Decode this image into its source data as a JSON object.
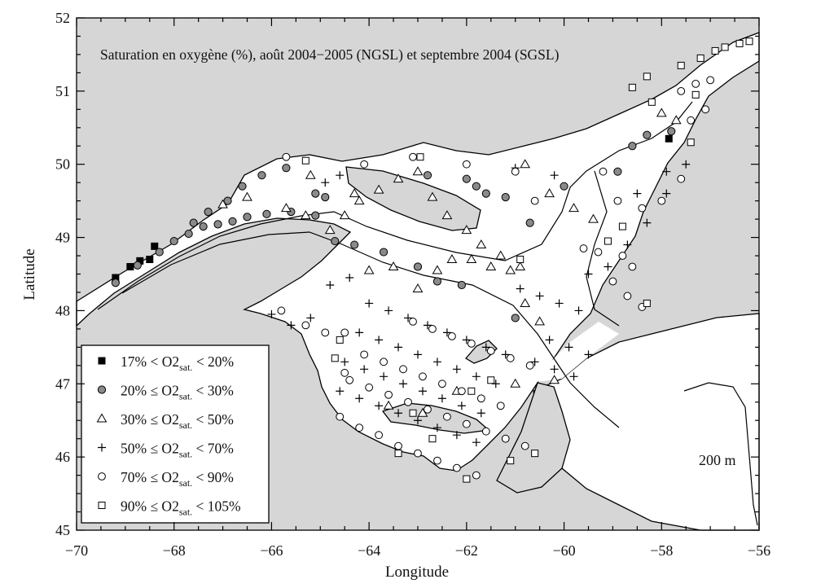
{
  "title": "Saturation en oxygène (%), août 2004−2005 (NGSL) et septembre 2004 (SGSL)",
  "axes": {
    "xlabel": "Longitude",
    "ylabel": "Latitude",
    "xlim": [
      -70,
      -56
    ],
    "ylim": [
      45,
      52
    ],
    "xticks": [
      "−70",
      "−68",
      "−66",
      "−64",
      "−62",
      "−60",
      "−58",
      "−56"
    ],
    "yticks": [
      "45",
      "46",
      "47",
      "48",
      "49",
      "50",
      "51",
      "52"
    ]
  },
  "depth_label": "200 m",
  "colors": {
    "land": "#d6d6d6",
    "water": "#ffffff",
    "gray_marker": "#8a8a8a",
    "ink": "#000000"
  },
  "legend": [
    {
      "marker": "filled-square",
      "pre": "17% < O2",
      "sub": "sat.",
      "post": " < 20%"
    },
    {
      "marker": "gray-circle",
      "pre": "20% ≤ O2",
      "sub": "sat.",
      "post": " < 30%"
    },
    {
      "marker": "triangle",
      "pre": "30% ≤ O2",
      "sub": "sat.",
      "post": " < 50%"
    },
    {
      "marker": "plus",
      "pre": "50% ≤ O2",
      "sub": "sat.",
      "post": " < 70%"
    },
    {
      "marker": "circle",
      "pre": "70% ≤ O2",
      "sub": "sat.",
      "post": " < 90%"
    },
    {
      "marker": "square",
      "pre": "90% ≤ O2",
      "sub": "sat.",
      "post": " < 105%"
    }
  ],
  "stations": {
    "filled-square": [
      [
        -69.2,
        48.45
      ],
      [
        -68.9,
        48.6
      ],
      [
        -68.7,
        48.68
      ],
      [
        -68.5,
        48.7
      ],
      [
        -68.4,
        48.88
      ],
      [
        -57.85,
        50.35
      ]
    ],
    "gray-circle": [
      [
        -69.2,
        48.38
      ],
      [
        -68.75,
        48.62
      ],
      [
        -68.3,
        48.8
      ],
      [
        -68.0,
        48.95
      ],
      [
        -67.7,
        49.05
      ],
      [
        -67.4,
        49.15
      ],
      [
        -67.1,
        49.18
      ],
      [
        -66.8,
        49.22
      ],
      [
        -66.5,
        49.28
      ],
      [
        -66.1,
        49.32
      ],
      [
        -65.6,
        49.35
      ],
      [
        -65.1,
        49.3
      ],
      [
        -67.6,
        49.2
      ],
      [
        -67.3,
        49.35
      ],
      [
        -66.9,
        49.5
      ],
      [
        -66.6,
        49.7
      ],
      [
        -66.2,
        49.85
      ],
      [
        -65.7,
        49.95
      ],
      [
        -65.1,
        49.6
      ],
      [
        -64.9,
        49.55
      ],
      [
        -64.7,
        48.95
      ],
      [
        -64.3,
        48.9
      ],
      [
        -63.7,
        48.8
      ],
      [
        -63.0,
        48.6
      ],
      [
        -62.6,
        48.4
      ],
      [
        -62.1,
        48.35
      ],
      [
        -61.8,
        49.7
      ],
      [
        -61.6,
        49.6
      ],
      [
        -61.2,
        49.55
      ],
      [
        -60.7,
        49.2
      ],
      [
        -62.8,
        49.85
      ],
      [
        -62.0,
        49.8
      ],
      [
        -58.6,
        50.25
      ],
      [
        -58.3,
        50.4
      ],
      [
        -57.8,
        50.45
      ],
      [
        -58.9,
        49.9
      ],
      [
        -60.0,
        49.7
      ],
      [
        -61.0,
        47.9
      ]
    ],
    "triangle": [
      [
        -67.0,
        49.45
      ],
      [
        -66.5,
        49.55
      ],
      [
        -65.7,
        49.4
      ],
      [
        -65.3,
        49.3
      ],
      [
        -64.8,
        49.1
      ],
      [
        -64.5,
        49.3
      ],
      [
        -64.2,
        49.5
      ],
      [
        -63.8,
        49.65
      ],
      [
        -63.4,
        49.8
      ],
      [
        -63.0,
        49.9
      ],
      [
        -62.7,
        49.55
      ],
      [
        -62.4,
        49.3
      ],
      [
        -62.0,
        49.1
      ],
      [
        -61.7,
        48.9
      ],
      [
        -61.3,
        48.75
      ],
      [
        -60.9,
        48.6
      ],
      [
        -64.0,
        48.55
      ],
      [
        -63.5,
        48.6
      ],
      [
        -63.0,
        48.3
      ],
      [
        -62.6,
        48.55
      ],
      [
        -62.3,
        48.7
      ],
      [
        -61.9,
        48.7
      ],
      [
        -61.5,
        48.6
      ],
      [
        -61.1,
        48.55
      ],
      [
        -60.8,
        48.1
      ],
      [
        -60.5,
        47.85
      ],
      [
        -65.2,
        49.85
      ],
      [
        -64.3,
        49.6
      ],
      [
        -60.8,
        50.0
      ],
      [
        -60.3,
        49.6
      ],
      [
        -59.8,
        49.4
      ],
      [
        -59.4,
        49.25
      ],
      [
        -58.0,
        50.7
      ],
      [
        -57.7,
        50.6
      ],
      [
        -62.9,
        46.6
      ],
      [
        -63.6,
        46.7
      ],
      [
        -62.2,
        46.9
      ],
      [
        -61.0,
        47.0
      ],
      [
        -60.2,
        47.05
      ]
    ],
    "plus": [
      [
        -64.0,
        48.1
      ],
      [
        -63.6,
        48.0
      ],
      [
        -63.2,
        47.9
      ],
      [
        -62.8,
        47.8
      ],
      [
        -62.4,
        47.7
      ],
      [
        -62.0,
        47.6
      ],
      [
        -61.6,
        47.5
      ],
      [
        -61.2,
        47.4
      ],
      [
        -64.2,
        47.7
      ],
      [
        -63.8,
        47.6
      ],
      [
        -63.4,
        47.5
      ],
      [
        -63.0,
        47.4
      ],
      [
        -62.6,
        47.3
      ],
      [
        -62.2,
        47.2
      ],
      [
        -61.8,
        47.1
      ],
      [
        -61.4,
        47.0
      ],
      [
        -64.5,
        47.3
      ],
      [
        -64.1,
        47.2
      ],
      [
        -63.7,
        47.1
      ],
      [
        -63.3,
        47.0
      ],
      [
        -62.9,
        46.9
      ],
      [
        -62.5,
        46.8
      ],
      [
        -62.1,
        46.7
      ],
      [
        -61.7,
        46.6
      ],
      [
        -64.6,
        46.9
      ],
      [
        -64.2,
        46.8
      ],
      [
        -63.8,
        46.7
      ],
      [
        -63.4,
        46.6
      ],
      [
        -63.0,
        46.5
      ],
      [
        -62.6,
        46.4
      ],
      [
        -62.2,
        46.3
      ],
      [
        -61.8,
        46.2
      ],
      [
        -60.9,
        48.3
      ],
      [
        -60.5,
        48.2
      ],
      [
        -60.1,
        48.1
      ],
      [
        -59.7,
        48.0
      ],
      [
        -60.3,
        47.6
      ],
      [
        -59.9,
        47.5
      ],
      [
        -59.5,
        47.4
      ],
      [
        -60.6,
        47.3
      ],
      [
        -60.2,
        47.2
      ],
      [
        -59.8,
        47.1
      ],
      [
        -59.5,
        48.5
      ],
      [
        -59.1,
        48.6
      ],
      [
        -58.7,
        48.9
      ],
      [
        -58.3,
        49.2
      ],
      [
        -57.9,
        49.6
      ],
      [
        -57.5,
        50.0
      ],
      [
        -65.2,
        47.9
      ],
      [
        -65.6,
        47.8
      ],
      [
        -66.0,
        47.95
      ],
      [
        -64.8,
        48.35
      ],
      [
        -64.4,
        48.45
      ],
      [
        -61.0,
        49.95
      ],
      [
        -60.2,
        49.85
      ],
      [
        -64.6,
        49.85
      ],
      [
        -64.9,
        49.75
      ],
      [
        -58.5,
        49.6
      ],
      [
        -57.9,
        49.9
      ]
    ],
    "circle": [
      [
        -65.8,
        48.0
      ],
      [
        -65.3,
        47.8
      ],
      [
        -64.9,
        47.7
      ],
      [
        -64.5,
        47.7
      ],
      [
        -64.1,
        47.4
      ],
      [
        -63.7,
        47.3
      ],
      [
        -63.3,
        47.2
      ],
      [
        -62.9,
        47.1
      ],
      [
        -62.5,
        47.0
      ],
      [
        -62.1,
        46.9
      ],
      [
        -61.7,
        46.8
      ],
      [
        -61.3,
        46.7
      ],
      [
        -64.4,
        47.05
      ],
      [
        -64.0,
        46.95
      ],
      [
        -63.6,
        46.85
      ],
      [
        -63.2,
        46.75
      ],
      [
        -62.8,
        46.65
      ],
      [
        -62.4,
        46.55
      ],
      [
        -62.0,
        46.45
      ],
      [
        -61.6,
        46.35
      ],
      [
        -61.2,
        46.25
      ],
      [
        -60.8,
        46.15
      ],
      [
        -64.6,
        46.55
      ],
      [
        -64.2,
        46.4
      ],
      [
        -63.8,
        46.3
      ],
      [
        -63.4,
        46.15
      ],
      [
        -63.0,
        46.05
      ],
      [
        -62.6,
        45.95
      ],
      [
        -62.2,
        45.85
      ],
      [
        -61.8,
        45.75
      ],
      [
        -63.1,
        47.85
      ],
      [
        -62.7,
        47.75
      ],
      [
        -62.3,
        47.65
      ],
      [
        -61.9,
        47.55
      ],
      [
        -61.5,
        47.45
      ],
      [
        -61.1,
        47.35
      ],
      [
        -60.7,
        47.25
      ],
      [
        -59.0,
        48.4
      ],
      [
        -58.7,
        48.2
      ],
      [
        -58.4,
        48.05
      ],
      [
        -58.8,
        48.75
      ],
      [
        -59.3,
        48.8
      ],
      [
        -58.4,
        49.4
      ],
      [
        -58.0,
        49.5
      ],
      [
        -57.6,
        49.8
      ],
      [
        -57.3,
        51.1
      ],
      [
        -57.0,
        51.15
      ],
      [
        -57.6,
        51.0
      ],
      [
        -57.1,
        50.75
      ],
      [
        -57.4,
        50.6
      ],
      [
        -65.7,
        50.1
      ],
      [
        -64.1,
        50.0
      ],
      [
        -63.1,
        50.1
      ],
      [
        -62.0,
        50.0
      ],
      [
        -61.0,
        49.9
      ],
      [
        -60.6,
        49.5
      ],
      [
        -59.2,
        49.9
      ],
      [
        -58.9,
        49.5
      ],
      [
        -58.6,
        48.6
      ],
      [
        -59.6,
        48.85
      ],
      [
        -64.5,
        47.15
      ]
    ],
    "square": [
      [
        -62.95,
        50.1
      ],
      [
        -64.6,
        47.6
      ],
      [
        -64.7,
        47.35
      ],
      [
        -61.5,
        47.05
      ],
      [
        -61.9,
        46.9
      ],
      [
        -63.1,
        46.6
      ],
      [
        -62.7,
        46.25
      ],
      [
        -63.4,
        46.05
      ],
      [
        -61.1,
        45.95
      ],
      [
        -60.6,
        46.05
      ],
      [
        -62.0,
        45.7
      ],
      [
        -57.6,
        51.35
      ],
      [
        -57.2,
        51.45
      ],
      [
        -56.9,
        51.55
      ],
      [
        -56.7,
        51.6
      ],
      [
        -56.4,
        51.65
      ],
      [
        -56.2,
        51.68
      ],
      [
        -58.3,
        51.2
      ],
      [
        -58.6,
        51.05
      ],
      [
        -58.2,
        50.85
      ],
      [
        -57.4,
        50.3
      ],
      [
        -58.8,
        49.15
      ],
      [
        -59.1,
        48.95
      ],
      [
        -58.3,
        48.1
      ],
      [
        -60.9,
        48.7
      ],
      [
        -57.3,
        50.95
      ],
      [
        -65.3,
        50.05
      ]
    ]
  }
}
